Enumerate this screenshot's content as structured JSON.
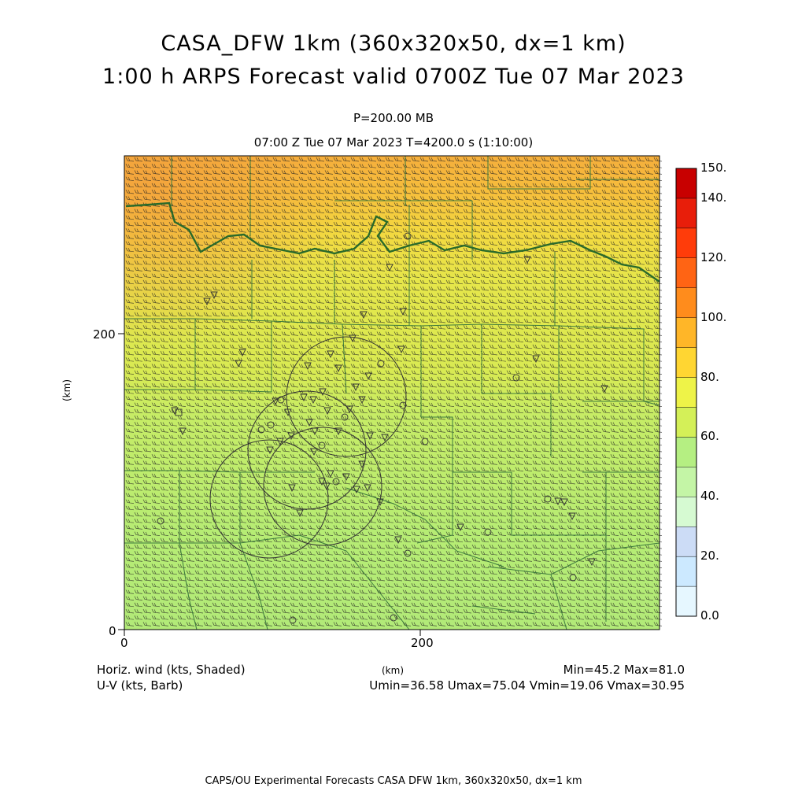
{
  "title_line1": "CASA_DFW 1km (360x320x50, dx=1 km)",
  "title_line2": "1:00 h ARPS Forecast valid 0700Z Tue 07 Mar 2023",
  "pressure_level": "P=200.00 MB",
  "valid_time": "07:00 Z Tue 07 Mar 2023   T=4200.0 s (1:10:00)",
  "axes": {
    "x_label": "(km)",
    "y_label": "(km)",
    "x_ticks": [
      "0",
      "200"
    ],
    "y_ticks": [
      "0",
      "200"
    ],
    "x_range": [
      0,
      360
    ],
    "y_range": [
      0,
      320
    ]
  },
  "field_label": "Horiz. wind (kts, Shaded)",
  "vector_label": "U-V (kts, Barb)",
  "minmax": "Min=45.2 Max=81.0",
  "uv_stats": "Umin=36.58 Umax=75.04 Vmin=19.06 Vmax=30.95",
  "colorbar": {
    "labels": [
      "0.0",
      "20.",
      "40.",
      "60.",
      "80.",
      "100.",
      "120.",
      "140.",
      "150."
    ],
    "levels": [
      0,
      10,
      20,
      30,
      40,
      50,
      60,
      70,
      80,
      90,
      100,
      110,
      120,
      130,
      140,
      150
    ],
    "colors": [
      "#e6f7ff",
      "#cce9ff",
      "#ccdcf6",
      "#d6fad2",
      "#c4f5a6",
      "#b5ef82",
      "#d4f058",
      "#eef348",
      "#ffd632",
      "#ffb628",
      "#ff8c1c",
      "#ff6414",
      "#ff3c0a",
      "#e81e0a",
      "#c80000"
    ]
  },
  "footer": "CAPS/OU Experimental Forecasts  CASA DFW 1km, 360x320x50, dx=1 km"
}
